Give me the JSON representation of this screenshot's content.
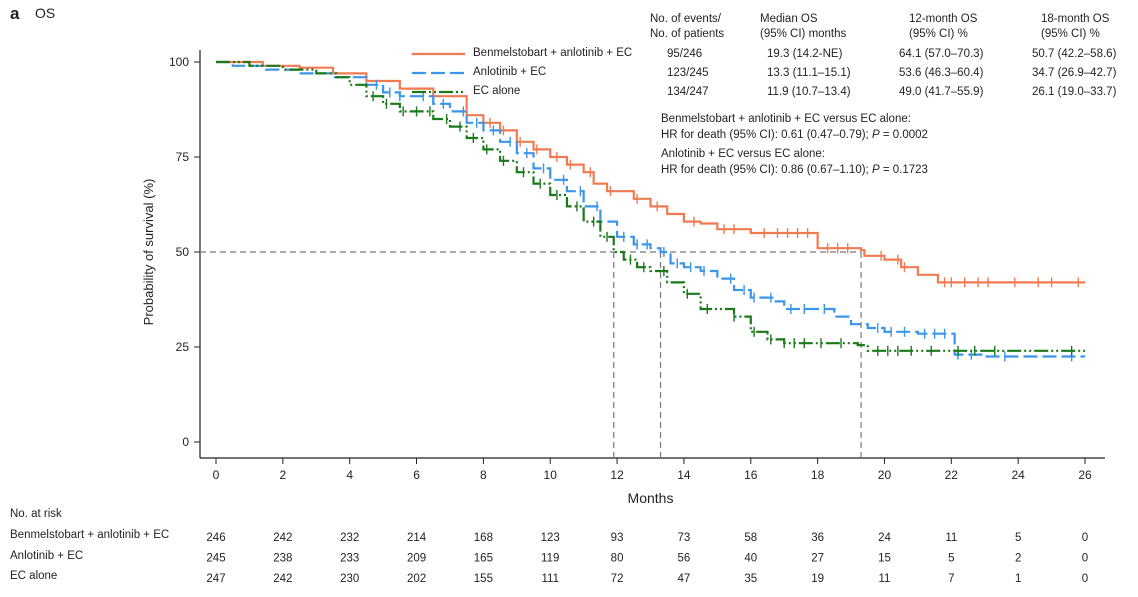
{
  "panel": {
    "letter": "a",
    "title": "OS"
  },
  "colors": {
    "benmelstobart": "#f07b52",
    "anlotinib": "#3b95e8",
    "ec_alone": "#1a7a1a",
    "axis": "#231f20",
    "reference": "#777777"
  },
  "summary_table": {
    "headers": [
      "No. of events/\nNo. of patients",
      "Median OS\n(95% CI) months",
      "12-month OS\n(95% CI) %",
      "18-month OS\n(95% CI) %"
    ],
    "header_lines": [
      [
        "No. of events/",
        "No. of patients"
      ],
      [
        "Median OS",
        "(95% CI) months"
      ],
      [
        "12-month OS",
        "(95% CI) %"
      ],
      [
        "18-month OS",
        "(95% CI) %"
      ]
    ],
    "rows": [
      {
        "arm": "Benmelstobart + anlotinib + EC",
        "events": "95/246",
        "median": "19.3 (14.2-NE)",
        "m12": "64.1 (57.0–70.3)",
        "m18": "50.7 (42.2–58.6)"
      },
      {
        "arm": "Anlotinib + EC",
        "events": "123/245",
        "median": "13.3 (11.1–15.1)",
        "m12": "53.6 (46.3–60.4)",
        "m18": "34.7 (26.9–42.7)"
      },
      {
        "arm": "EC alone",
        "events": "134/247",
        "median": "11.9 (10.7–13.4)",
        "m12": "49.0 (41.7–55.9)",
        "m18": "26.1 (19.0–33.7)"
      }
    ]
  },
  "hazard_ratios": [
    {
      "comparison": "Benmelstobart + anlotinib + EC versus EC alone:",
      "prefix": "HR for death (95% CI): 0.61 (0.47–0.79); ",
      "p_label": "P",
      "p_value": " = 0.0002"
    },
    {
      "comparison": "Anlotinib + EC versus EC alone:",
      "prefix": "HR for death (95% CI): 0.86 (0.67–1.10); ",
      "p_label": "P",
      "p_value": " = 0.1723"
    }
  ],
  "risk_table": {
    "title": "No. at risk",
    "rows": [
      {
        "arm": "Benmelstobart + anlotinib + EC",
        "values": [
          246,
          242,
          232,
          214,
          168,
          123,
          93,
          73,
          58,
          36,
          24,
          11,
          5,
          0
        ]
      },
      {
        "arm": "Anlotinib + EC",
        "values": [
          245,
          238,
          233,
          209,
          165,
          119,
          80,
          56,
          40,
          27,
          15,
          5,
          2,
          0
        ]
      },
      {
        "arm": "EC alone",
        "values": [
          247,
          242,
          230,
          202,
          155,
          111,
          72,
          47,
          35,
          19,
          11,
          7,
          1,
          0
        ]
      }
    ]
  },
  "chart_data": {
    "type": "line",
    "subtype": "kaplan-meier",
    "title": "OS",
    "xlabel": "Months",
    "ylabel": "Probability of survival (%)",
    "xlim": [
      0,
      26
    ],
    "ylim": [
      0,
      100
    ],
    "xticks": [
      0,
      2,
      4,
      6,
      8,
      10,
      12,
      14,
      16,
      18,
      20,
      22,
      24,
      26
    ],
    "yticks": [
      0,
      25,
      50,
      75,
      100
    ],
    "grid": false,
    "legend_position": "top-center",
    "reference_line": {
      "y": 50,
      "medians": [
        11.9,
        13.3,
        19.3
      ]
    },
    "series": [
      {
        "name": "Benmelstobart + anlotinib + EC",
        "color_key": "benmelstobart",
        "dash": "solid",
        "points": [
          [
            0,
            100
          ],
          [
            1.3,
            100
          ],
          [
            1.4,
            99
          ],
          [
            2.5,
            98.5
          ],
          [
            3.5,
            97
          ],
          [
            4.5,
            95
          ],
          [
            5.5,
            93
          ],
          [
            6.5,
            91
          ],
          [
            7.5,
            86
          ],
          [
            8,
            84
          ],
          [
            8.5,
            82
          ],
          [
            9,
            79
          ],
          [
            9.5,
            77
          ],
          [
            10,
            75
          ],
          [
            10.5,
            73
          ],
          [
            11,
            71
          ],
          [
            11.3,
            68
          ],
          [
            11.7,
            66
          ],
          [
            12.5,
            64
          ],
          [
            13,
            62
          ],
          [
            13.5,
            60
          ],
          [
            14,
            58
          ],
          [
            14.5,
            57.5
          ],
          [
            15,
            56
          ],
          [
            16,
            55
          ],
          [
            17,
            55
          ],
          [
            17.8,
            55
          ],
          [
            18,
            51
          ],
          [
            19.3,
            50.5
          ],
          [
            19.4,
            49
          ],
          [
            20,
            48
          ],
          [
            20.5,
            46
          ],
          [
            21,
            44
          ],
          [
            21.6,
            42
          ],
          [
            23,
            42
          ],
          [
            25,
            42
          ],
          [
            26,
            42
          ]
        ],
        "censor_x": [
          8.2,
          8.6,
          9.1,
          9.6,
          10.2,
          10.6,
          11.2,
          11.8,
          12.6,
          13.2,
          14.3,
          15.2,
          15.5,
          16.4,
          16.8,
          17.1,
          17.4,
          17.7,
          18.3,
          18.6,
          18.9,
          19.9,
          20.4,
          20.6,
          21.8,
          22,
          22.4,
          22.8,
          23.1,
          23.9,
          24.6,
          25,
          25.8
        ]
      },
      {
        "name": "Anlotinib + EC",
        "color_key": "anlotinib",
        "dash": "long-dash",
        "points": [
          [
            0,
            100
          ],
          [
            0.5,
            99
          ],
          [
            1.5,
            98
          ],
          [
            2.5,
            97
          ],
          [
            3.5,
            96
          ],
          [
            4.5,
            94
          ],
          [
            5,
            92
          ],
          [
            5.5,
            91
          ],
          [
            6.5,
            89
          ],
          [
            7,
            87
          ],
          [
            7.5,
            84
          ],
          [
            8,
            82
          ],
          [
            8.5,
            79
          ],
          [
            9,
            76
          ],
          [
            9.5,
            72
          ],
          [
            10,
            69
          ],
          [
            10.5,
            66
          ],
          [
            11,
            62
          ],
          [
            11.5,
            58
          ],
          [
            12,
            54
          ],
          [
            12.5,
            52
          ],
          [
            13,
            51
          ],
          [
            13.3,
            50
          ],
          [
            13.6,
            47
          ],
          [
            14,
            46
          ],
          [
            14.5,
            45
          ],
          [
            15,
            43
          ],
          [
            15.5,
            40
          ],
          [
            16,
            38
          ],
          [
            16.7,
            37
          ],
          [
            17,
            35
          ],
          [
            18,
            35
          ],
          [
            18.5,
            33
          ],
          [
            19,
            31
          ],
          [
            19.5,
            30
          ],
          [
            20,
            29
          ],
          [
            21,
            28.5
          ],
          [
            22,
            28.5
          ],
          [
            22.1,
            23
          ],
          [
            23,
            22.5
          ],
          [
            24,
            22.5
          ],
          [
            26,
            22.5
          ]
        ],
        "censor_x": [
          4.8,
          5.2,
          5.5,
          6.2,
          6.8,
          7.4,
          7.8,
          8.3,
          8.8,
          9.3,
          9.8,
          10.4,
          10.9,
          11.4,
          12.2,
          12.6,
          12.9,
          13.4,
          13.8,
          14.2,
          14.6,
          15.4,
          15.8,
          16.1,
          16.6,
          17.2,
          17.6,
          18.2,
          19.8,
          20.2,
          20.6,
          21.2,
          21.5,
          21.8,
          22.2,
          22.6,
          23.6,
          25.6
        ]
      },
      {
        "name": "EC alone",
        "color_key": "ec_alone",
        "dash": "dash-dot-dot",
        "points": [
          [
            0,
            100
          ],
          [
            1,
            99
          ],
          [
            2,
            98
          ],
          [
            3,
            97
          ],
          [
            3.6,
            96
          ],
          [
            4,
            94
          ],
          [
            4.5,
            91
          ],
          [
            5,
            89
          ],
          [
            5.5,
            87
          ],
          [
            6.5,
            85
          ],
          [
            7,
            83
          ],
          [
            7.5,
            80
          ],
          [
            8,
            77
          ],
          [
            8.5,
            74
          ],
          [
            9,
            71
          ],
          [
            9.5,
            68
          ],
          [
            10,
            65
          ],
          [
            10.5,
            62
          ],
          [
            11,
            58
          ],
          [
            11.5,
            54
          ],
          [
            11.9,
            50
          ],
          [
            12.2,
            48
          ],
          [
            12.6,
            46
          ],
          [
            13,
            45
          ],
          [
            13.5,
            42
          ],
          [
            14,
            39
          ],
          [
            14.5,
            35
          ],
          [
            15,
            35
          ],
          [
            15.5,
            33
          ],
          [
            16,
            29
          ],
          [
            16.5,
            27
          ],
          [
            17,
            26
          ],
          [
            18,
            26
          ],
          [
            18.5,
            26
          ],
          [
            19.2,
            25.5
          ],
          [
            19.5,
            24
          ],
          [
            20,
            24
          ],
          [
            22,
            24
          ],
          [
            24,
            24
          ],
          [
            26,
            24
          ]
        ],
        "censor_x": [
          4.7,
          5.1,
          5.6,
          6,
          6.4,
          6.9,
          7.3,
          7.7,
          8.1,
          8.6,
          9.2,
          9.7,
          10.2,
          10.8,
          11.3,
          11.7,
          12.4,
          12.8,
          13.4,
          14.1,
          14.7,
          15.5,
          16.1,
          16.6,
          17,
          17.3,
          17.6,
          18.1,
          18.7,
          19.8,
          20.1,
          20.4,
          20.8,
          21.4,
          22.2,
          22.7,
          23.3,
          25.6
        ]
      }
    ]
  }
}
